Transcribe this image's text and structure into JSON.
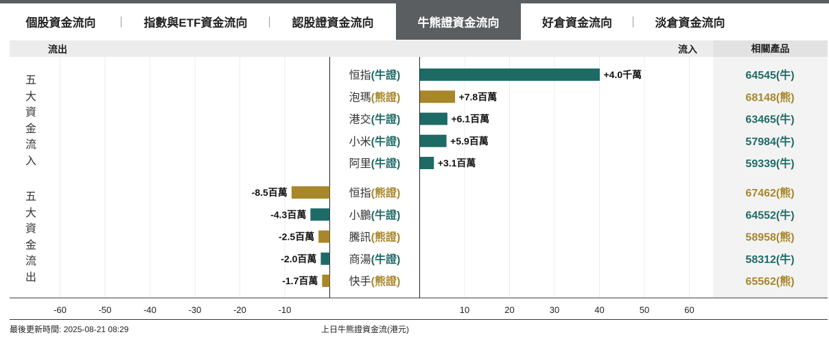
{
  "tabs": [
    {
      "label": "個股資金流向",
      "active": false
    },
    {
      "label": "指數與ETF資金流向",
      "active": false
    },
    {
      "label": "認股證資金流向",
      "active": false
    },
    {
      "label": "牛熊證資金流向",
      "active": true
    },
    {
      "label": "好倉資金流向",
      "active": false
    },
    {
      "label": "淡倉資金流向",
      "active": false
    }
  ],
  "header": {
    "outflow": "流出",
    "inflow": "流入",
    "related": "相關產品"
  },
  "section_labels": {
    "inflow_top5": "五大資金流入",
    "outflow_top5": "五大資金流出"
  },
  "colors": {
    "bull": "#1e6b66",
    "bear": "#a8862a",
    "tab_active_bg": "#5a5e61"
  },
  "chart_data": {
    "type": "bar",
    "orientation": "horizontal",
    "unit_note": "百萬",
    "xlim": [
      -70,
      70
    ],
    "ticks": [
      -60,
      -50,
      -40,
      -30,
      -20,
      -10,
      10,
      20,
      30,
      40,
      50,
      60
    ],
    "inflow": [
      {
        "name": "恒指",
        "kind": "(牛證)",
        "type": "bull",
        "value": 40,
        "label": "+4.0千萬",
        "product": "64545(牛)"
      },
      {
        "name": "泡瑪",
        "kind": "(熊證)",
        "type": "bear",
        "value": 7.8,
        "label": "+7.8百萬",
        "product": "68148(熊)"
      },
      {
        "name": "港交",
        "kind": "(牛證)",
        "type": "bull",
        "value": 6.1,
        "label": "+6.1百萬",
        "product": "63465(牛)"
      },
      {
        "name": "小米",
        "kind": "(牛證)",
        "type": "bull",
        "value": 5.9,
        "label": "+5.9百萬",
        "product": "57984(牛)"
      },
      {
        "name": "阿里",
        "kind": "(牛證)",
        "type": "bull",
        "value": 3.1,
        "label": "+3.1百萬",
        "product": "59339(牛)"
      }
    ],
    "outflow": [
      {
        "name": "恒指",
        "kind": "(熊證)",
        "type": "bear",
        "value": -8.5,
        "label": "-8.5百萬",
        "product": "67462(熊)"
      },
      {
        "name": "小鵬",
        "kind": "(牛證)",
        "type": "bull",
        "value": -4.3,
        "label": "-4.3百萬",
        "product": "64552(牛)"
      },
      {
        "name": "騰訊",
        "kind": "(熊證)",
        "type": "bear",
        "value": -2.5,
        "label": "-2.5百萬",
        "product": "58958(熊)"
      },
      {
        "name": "商湯",
        "kind": "(牛證)",
        "type": "bull",
        "value": -2.0,
        "label": "-2.0百萬",
        "product": "58312(牛)"
      },
      {
        "name": "快手",
        "kind": "(熊證)",
        "type": "bear",
        "value": -1.7,
        "label": "-1.7百萬",
        "product": "65562(熊)"
      }
    ]
  },
  "footer": {
    "updated_label": "最後更新時間:",
    "updated_value": "2025-08-21 08:29",
    "note": "上日牛熊證資金流(港元)"
  }
}
